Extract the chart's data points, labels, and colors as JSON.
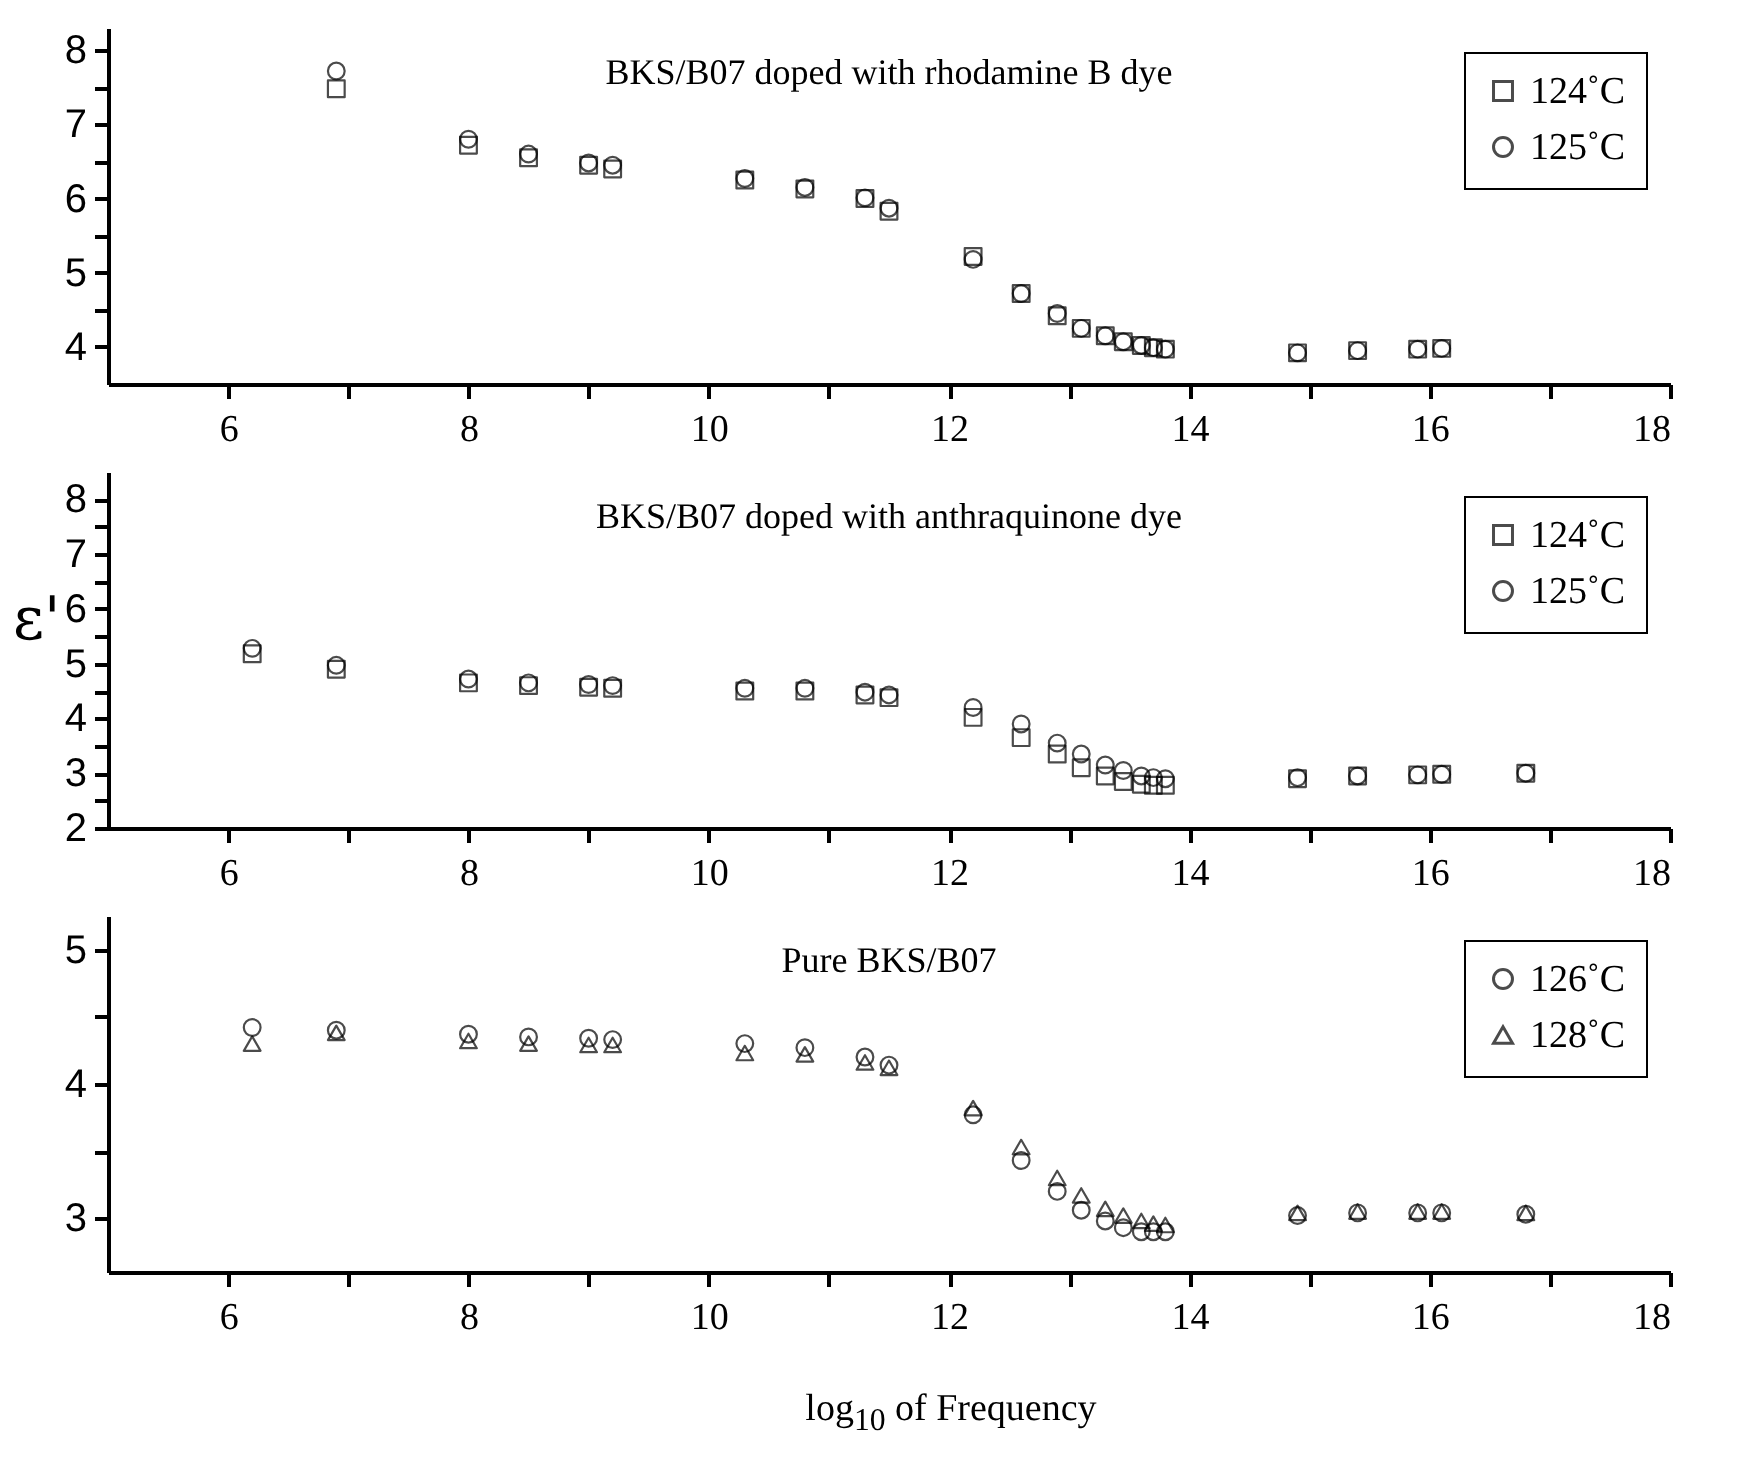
{
  "chart_data": [
    {
      "type": "scatter",
      "title": "BKS/B07 doped with rhodamine B dye",
      "legend": "top right",
      "grid": false,
      "x": [
        6.9,
        8.0,
        8.5,
        9.0,
        9.2,
        10.3,
        10.8,
        11.3,
        11.5,
        12.2,
        12.6,
        12.9,
        13.1,
        13.3,
        13.45,
        13.6,
        13.7,
        13.8,
        14.9,
        15.4,
        15.9,
        16.1
      ],
      "xlim": [
        5,
        18
      ],
      "xticks": [
        6,
        {
          "value": 7,
          "label": null
        },
        8,
        {
          "value": 9,
          "label": null
        },
        10,
        {
          "value": 11,
          "label": null
        },
        12,
        {
          "value": 13,
          "label": null
        },
        14,
        {
          "value": 15,
          "label": null
        },
        16,
        {
          "value": 17,
          "label": null
        },
        18
      ],
      "ylim": [
        3.5,
        8.3
      ],
      "yticks": [
        4,
        {
          "value": 4.5,
          "label": null
        },
        5,
        {
          "value": 5.5,
          "label": null
        },
        6,
        {
          "value": 6.5,
          "label": null
        },
        7,
        {
          "value": 7.5,
          "label": null
        },
        8
      ],
      "series": [
        {
          "name": "124˚C",
          "color": "#000000",
          "marker": "square",
          "values": [
            7.48,
            6.72,
            6.55,
            6.45,
            6.4,
            6.25,
            6.13,
            6.0,
            5.83,
            5.22,
            4.72,
            4.42,
            4.25,
            4.15,
            4.07,
            4.02,
            3.99,
            3.97,
            3.92,
            3.95,
            3.97,
            3.98
          ]
        },
        {
          "name": "125˚C",
          "color": "#000000",
          "marker": "circle",
          "values": [
            7.72,
            6.8,
            6.6,
            6.48,
            6.45,
            6.27,
            6.15,
            6.01,
            5.87,
            5.18,
            4.72,
            4.45,
            4.25,
            4.15,
            4.07,
            4.02,
            3.99,
            3.97,
            3.92,
            3.95,
            3.97,
            3.98
          ]
        }
      ]
    },
    {
      "type": "scatter",
      "title": "BKS/B07 doped with anthraquinone dye",
      "ylabel": "ε'",
      "legend": "top right",
      "grid": false,
      "x": [
        6.2,
        6.9,
        8.0,
        8.5,
        9.0,
        9.2,
        10.3,
        10.8,
        11.3,
        11.5,
        12.2,
        12.6,
        12.9,
        13.1,
        13.3,
        13.45,
        13.6,
        13.7,
        13.8,
        14.9,
        15.4,
        15.9,
        16.1,
        16.8
      ],
      "xlim": [
        5,
        18
      ],
      "xticks": [
        6,
        {
          "value": 7,
          "label": null
        },
        8,
        {
          "value": 9,
          "label": null
        },
        10,
        {
          "value": 11,
          "label": null
        },
        12,
        {
          "value": 13,
          "label": null
        },
        14,
        {
          "value": 15,
          "label": null
        },
        16,
        {
          "value": 17,
          "label": null
        },
        18
      ],
      "ylim": [
        2,
        8.5
      ],
      "yticks": [
        2,
        {
          "value": 2.5,
          "label": null
        },
        3,
        {
          "value": 3.5,
          "label": null
        },
        4,
        {
          "value": 4.5,
          "label": null
        },
        5,
        {
          "value": 5.5,
          "label": null
        },
        6,
        {
          "value": 6.5,
          "label": null
        },
        7,
        {
          "value": 7.5,
          "label": null
        },
        8
      ],
      "series": [
        {
          "name": "124˚C",
          "color": "#000000",
          "marker": "square",
          "values": [
            5.18,
            4.9,
            4.65,
            4.6,
            4.57,
            4.55,
            4.5,
            4.5,
            4.43,
            4.38,
            4.02,
            3.65,
            3.35,
            3.1,
            2.95,
            2.85,
            2.8,
            2.78,
            2.78,
            2.9,
            2.95,
            2.97,
            2.98,
            3.0
          ]
        },
        {
          "name": "125˚C",
          "color": "#000000",
          "marker": "circle",
          "values": [
            5.28,
            4.97,
            4.72,
            4.65,
            4.62,
            4.6,
            4.55,
            4.55,
            4.48,
            4.43,
            4.2,
            3.9,
            3.55,
            3.35,
            3.15,
            3.05,
            2.95,
            2.92,
            2.9,
            2.92,
            2.95,
            2.97,
            2.98,
            3.0
          ]
        }
      ]
    },
    {
      "type": "scatter",
      "title": "Pure BKS/B07",
      "xlabel": "log$_{10}$ of Frequency",
      "legend": "top right",
      "grid": false,
      "x": [
        6.2,
        6.9,
        8.0,
        8.5,
        9.0,
        9.2,
        10.3,
        10.8,
        11.3,
        11.5,
        12.2,
        12.6,
        12.9,
        13.1,
        13.3,
        13.45,
        13.6,
        13.7,
        13.8,
        14.9,
        15.4,
        15.9,
        16.1,
        16.8
      ],
      "xlim": [
        5,
        18
      ],
      "xticks": [
        6,
        {
          "value": 7,
          "label": null
        },
        8,
        {
          "value": 9,
          "label": null
        },
        10,
        {
          "value": 11,
          "label": null
        },
        12,
        {
          "value": 13,
          "label": null
        },
        14,
        {
          "value": 15,
          "label": null
        },
        16,
        {
          "value": 17,
          "label": null
        },
        18
      ],
      "ylim": [
        2.6,
        5.25
      ],
      "yticks": [
        3,
        {
          "value": 3.5,
          "label": null
        },
        4,
        {
          "value": 4.5,
          "label": null
        },
        5
      ],
      "series": [
        {
          "name": "126˚C",
          "color": "#000000",
          "marker": "circle",
          "values": [
            4.42,
            4.4,
            4.37,
            4.35,
            4.34,
            4.33,
            4.3,
            4.27,
            4.2,
            4.14,
            3.77,
            3.43,
            3.2,
            3.06,
            2.98,
            2.93,
            2.9,
            2.9,
            2.9,
            3.02,
            3.04,
            3.04,
            3.04,
            3.03
          ]
        },
        {
          "name": "128˚C",
          "color": "#000000",
          "marker": "triangle",
          "values": [
            4.3,
            4.38,
            4.32,
            4.3,
            4.29,
            4.29,
            4.23,
            4.22,
            4.16,
            4.12,
            3.82,
            3.53,
            3.3,
            3.17,
            3.07,
            3.02,
            2.98,
            2.96,
            2.95,
            3.04,
            3.05,
            3.05,
            3.05,
            3.04
          ]
        }
      ]
    }
  ]
}
